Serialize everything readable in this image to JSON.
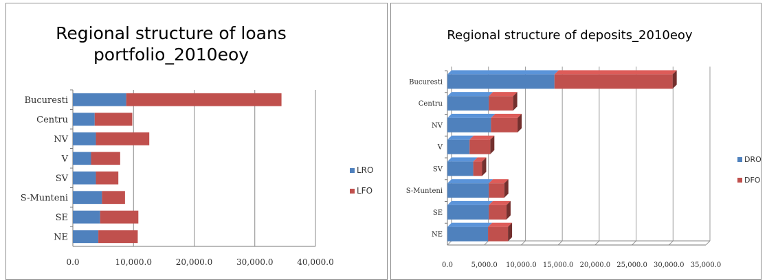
{
  "chart_data": [
    {
      "type": "bar",
      "orientation": "horizontal",
      "stacked": true,
      "title": "Regional structure of loans portfolio_2010eoy",
      "categories": [
        "Bucuresti",
        "Centru",
        "NV",
        "V",
        "SV",
        "S-Munteni",
        "SE",
        "NE"
      ],
      "series": [
        {
          "name": "LRO",
          "color": "#4f81bd",
          "values": [
            8800,
            3600,
            3800,
            3000,
            3800,
            4800,
            4500,
            4200
          ]
        },
        {
          "name": "LFO",
          "color": "#c0504d",
          "values": [
            25600,
            6200,
            8800,
            4800,
            3700,
            3800,
            6300,
            6500
          ]
        }
      ],
      "xlim": [
        0,
        40000
      ],
      "xticks": [
        "0.0",
        "10,000.0",
        "20,000.0",
        "30,000.0",
        "40,000.0"
      ],
      "grid": true,
      "legend": "right"
    },
    {
      "type": "bar",
      "orientation": "horizontal",
      "stacked": true,
      "style": "3d",
      "title": "Regional structure of deposits_2010eoy",
      "categories": [
        "Bucuresti",
        "Centru",
        "NV",
        "V",
        "SV",
        "S-Munteni",
        "SE",
        "NE"
      ],
      "series": [
        {
          "name": "DRO",
          "color": "#4f81bd",
          "values": [
            14500,
            5600,
            5900,
            3000,
            3500,
            5600,
            5600,
            5500
          ]
        },
        {
          "name": "DFO",
          "color": "#c0504d",
          "values": [
            16000,
            3300,
            3600,
            2800,
            1200,
            2100,
            2400,
            2700
          ]
        }
      ],
      "xlim": [
        0,
        35000
      ],
      "xticks": [
        "0.0",
        "5,000.0",
        "10,000.0",
        "15,000.0",
        "20,000.0",
        "25,000.0",
        "30,000.0",
        "35,000.0"
      ],
      "grid": true,
      "legend": "right"
    }
  ]
}
